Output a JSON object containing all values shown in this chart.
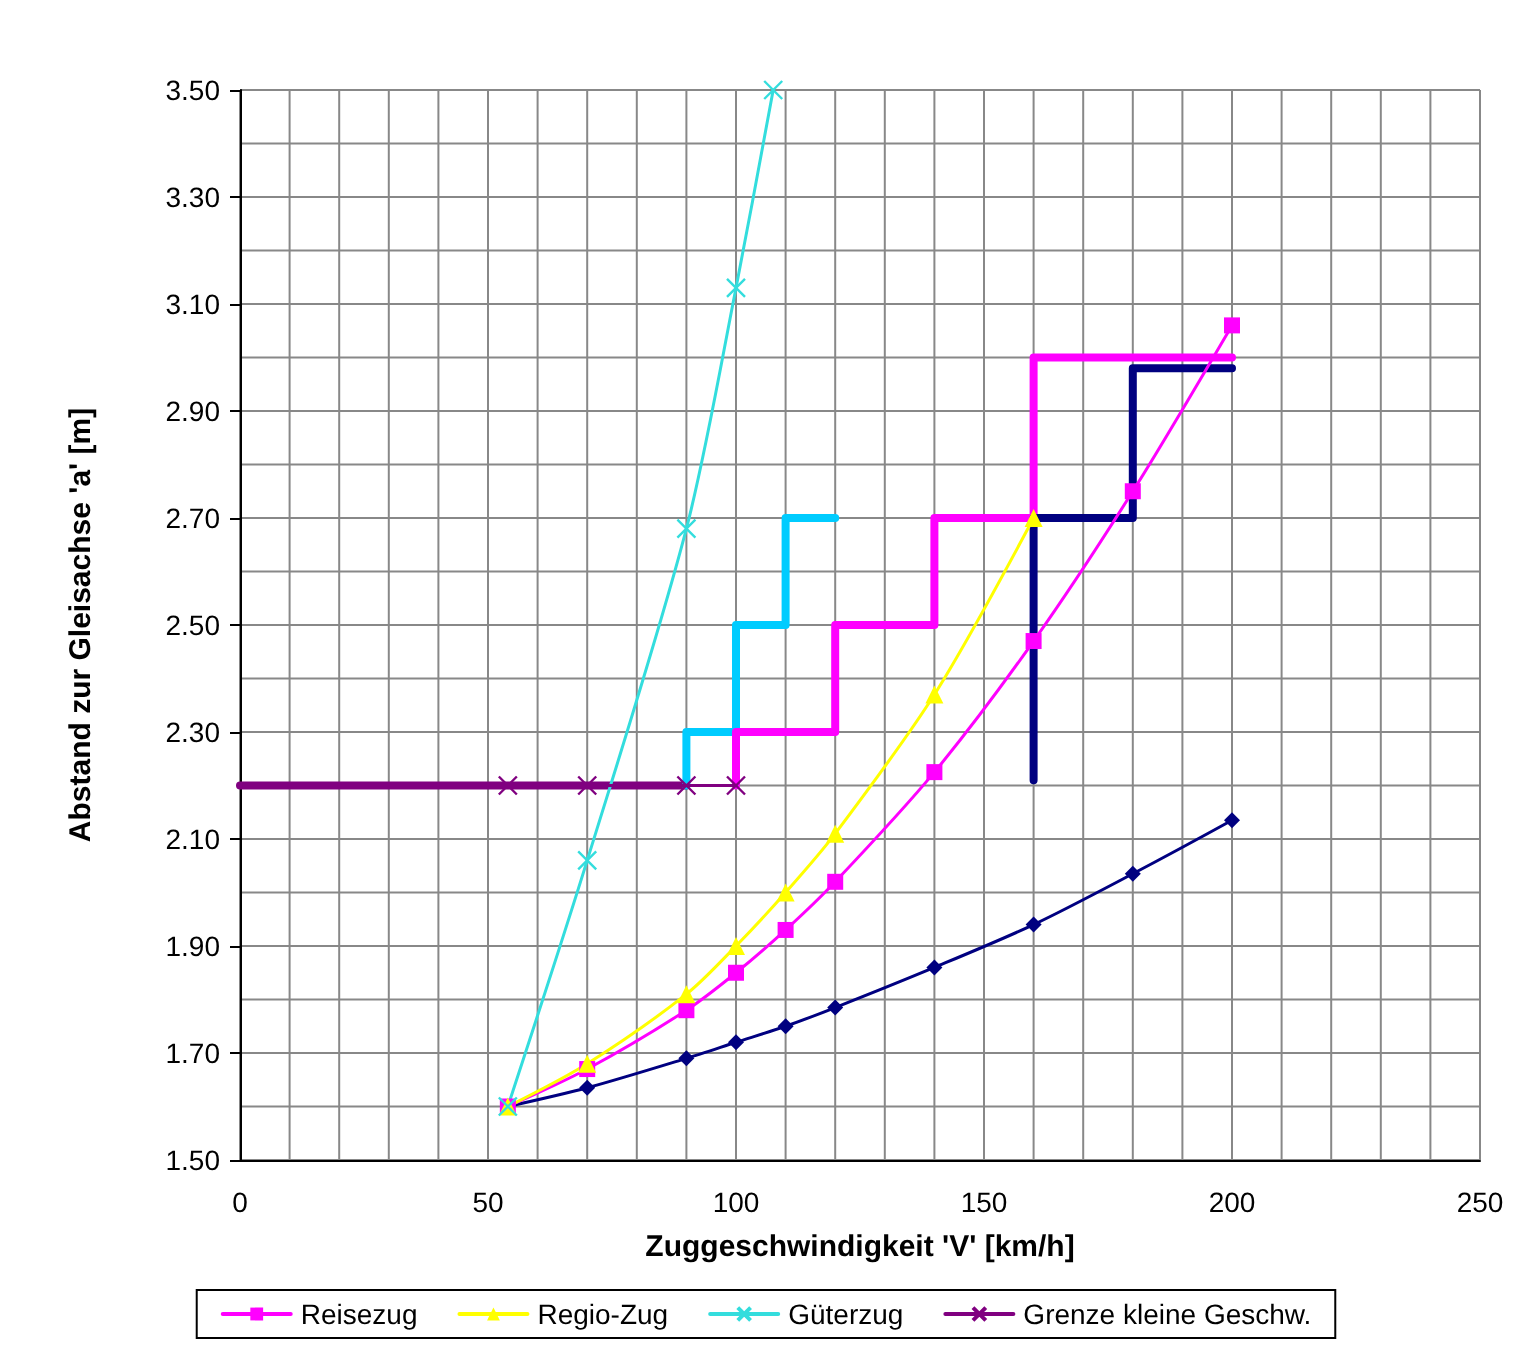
{
  "chart_data": {
    "type": "line",
    "xlabel": "Zuggeschwindigkeit 'V' [km/h]",
    "ylabel": "Abstand zur Gleisachse 'a' [m]",
    "xlim": [
      0,
      250
    ],
    "xticks": [
      0,
      {
        "value": 10,
        "label": null
      },
      {
        "value": 20,
        "label": null
      },
      {
        "value": 30,
        "label": null
      },
      {
        "value": 40,
        "label": null
      },
      50,
      {
        "value": 60,
        "label": null
      },
      {
        "value": 70,
        "label": null
      },
      {
        "value": 80,
        "label": null
      },
      {
        "value": 90,
        "label": null
      },
      100,
      {
        "value": 110,
        "label": null
      },
      {
        "value": 120,
        "label": null
      },
      {
        "value": 130,
        "label": null
      },
      {
        "value": 140,
        "label": null
      },
      150,
      {
        "value": 160,
        "label": null
      },
      {
        "value": 170,
        "label": null
      },
      {
        "value": 180,
        "label": null
      },
      {
        "value": 190,
        "label": null
      },
      200,
      {
        "value": 210,
        "label": null
      },
      {
        "value": 220,
        "label": null
      },
      {
        "value": 230,
        "label": null
      },
      {
        "value": 240,
        "label": null
      },
      250
    ],
    "ylim": [
      1.5,
      3.5
    ],
    "yticks": [
      {
        "value": 1.5,
        "label": "1.50"
      },
      {
        "value": 1.6,
        "label": null
      },
      {
        "value": 1.7,
        "label": "1.70"
      },
      {
        "value": 1.8,
        "label": null
      },
      {
        "value": 1.9,
        "label": "1.90"
      },
      {
        "value": 2.0,
        "label": null
      },
      {
        "value": 2.1,
        "label": "2.10"
      },
      {
        "value": 2.2,
        "label": null
      },
      {
        "value": 2.3,
        "label": "2.30"
      },
      {
        "value": 2.4,
        "label": null
      },
      {
        "value": 2.5,
        "label": "2.50"
      },
      {
        "value": 2.6,
        "label": null
      },
      {
        "value": 2.7,
        "label": "2.70"
      },
      {
        "value": 2.8,
        "label": null
      },
      {
        "value": 2.9,
        "label": "2.90"
      },
      {
        "value": 3.0,
        "label": null
      },
      {
        "value": 3.1,
        "label": "3.10"
      },
      {
        "value": 3.2,
        "label": null
      },
      {
        "value": 3.3,
        "label": "3.30"
      },
      {
        "value": 3.4,
        "label": null
      },
      {
        "value": 3.5,
        "label": "3.50"
      }
    ],
    "grid": true,
    "legend": "bottom",
    "series": [
      {
        "color": "#000080",
        "marker": "diamond",
        "x": [
          54,
          70,
          90,
          100,
          110,
          120,
          140,
          160,
          180,
          200
        ],
        "values": [
          1.6,
          1.635,
          1.69,
          1.72,
          1.75,
          1.785,
          1.86,
          1.94,
          2.035,
          2.135
        ]
      },
      {
        "name": "Reisezug",
        "color": "#ff00ff",
        "marker": "square",
        "x": [
          54,
          70,
          90,
          100,
          110,
          120,
          140,
          160,
          180,
          200
        ],
        "values": [
          1.6,
          1.67,
          1.78,
          1.85,
          1.93,
          2.02,
          2.225,
          2.47,
          2.75,
          3.06
        ]
      },
      {
        "name": "Regio-Zug",
        "color": "#ffff00",
        "marker": "triangle",
        "x": [
          54,
          70,
          90,
          100,
          110,
          120,
          140,
          160
        ],
        "values": [
          1.6,
          1.68,
          1.81,
          1.9,
          2.0,
          2.11,
          2.37,
          2.7
        ]
      },
      {
        "name": "Güterzug",
        "color": "#33dddd",
        "marker": "cross",
        "x": [
          54,
          70,
          90,
          100,
          107.5
        ],
        "values": [
          1.6,
          2.06,
          2.68,
          3.13,
          3.5
        ]
      },
      {
        "name": "Grenze kleine Geschw.",
        "color": "#800080",
        "marker": "cross",
        "x": [
          54,
          70,
          90,
          100
        ],
        "values": [
          2.2,
          2.2,
          2.2,
          2.2
        ]
      },
      {
        "color": "#800080",
        "marker": "none",
        "x": [
          0,
          90
        ],
        "values": [
          2.2,
          2.2
        ]
      },
      {
        "color": "#00ccff",
        "marker": "none",
        "x": [
          90,
          90,
          100,
          100,
          110,
          110,
          120
        ],
        "values": [
          2.2,
          2.3,
          2.3,
          2.5,
          2.5,
          2.7,
          2.7
        ]
      },
      {
        "color": "#ff00ff",
        "marker": "none",
        "x": [
          100,
          100,
          120,
          120,
          140,
          140,
          160,
          160,
          200
        ],
        "values": [
          2.2,
          2.3,
          2.3,
          2.5,
          2.5,
          2.7,
          2.7,
          3.0,
          3.0
        ]
      },
      {
        "color": "#000080",
        "marker": "none",
        "x": [
          160,
          160,
          180,
          180,
          200
        ],
        "values": [
          2.21,
          2.7,
          2.7,
          2.98,
          2.98
        ]
      }
    ]
  }
}
